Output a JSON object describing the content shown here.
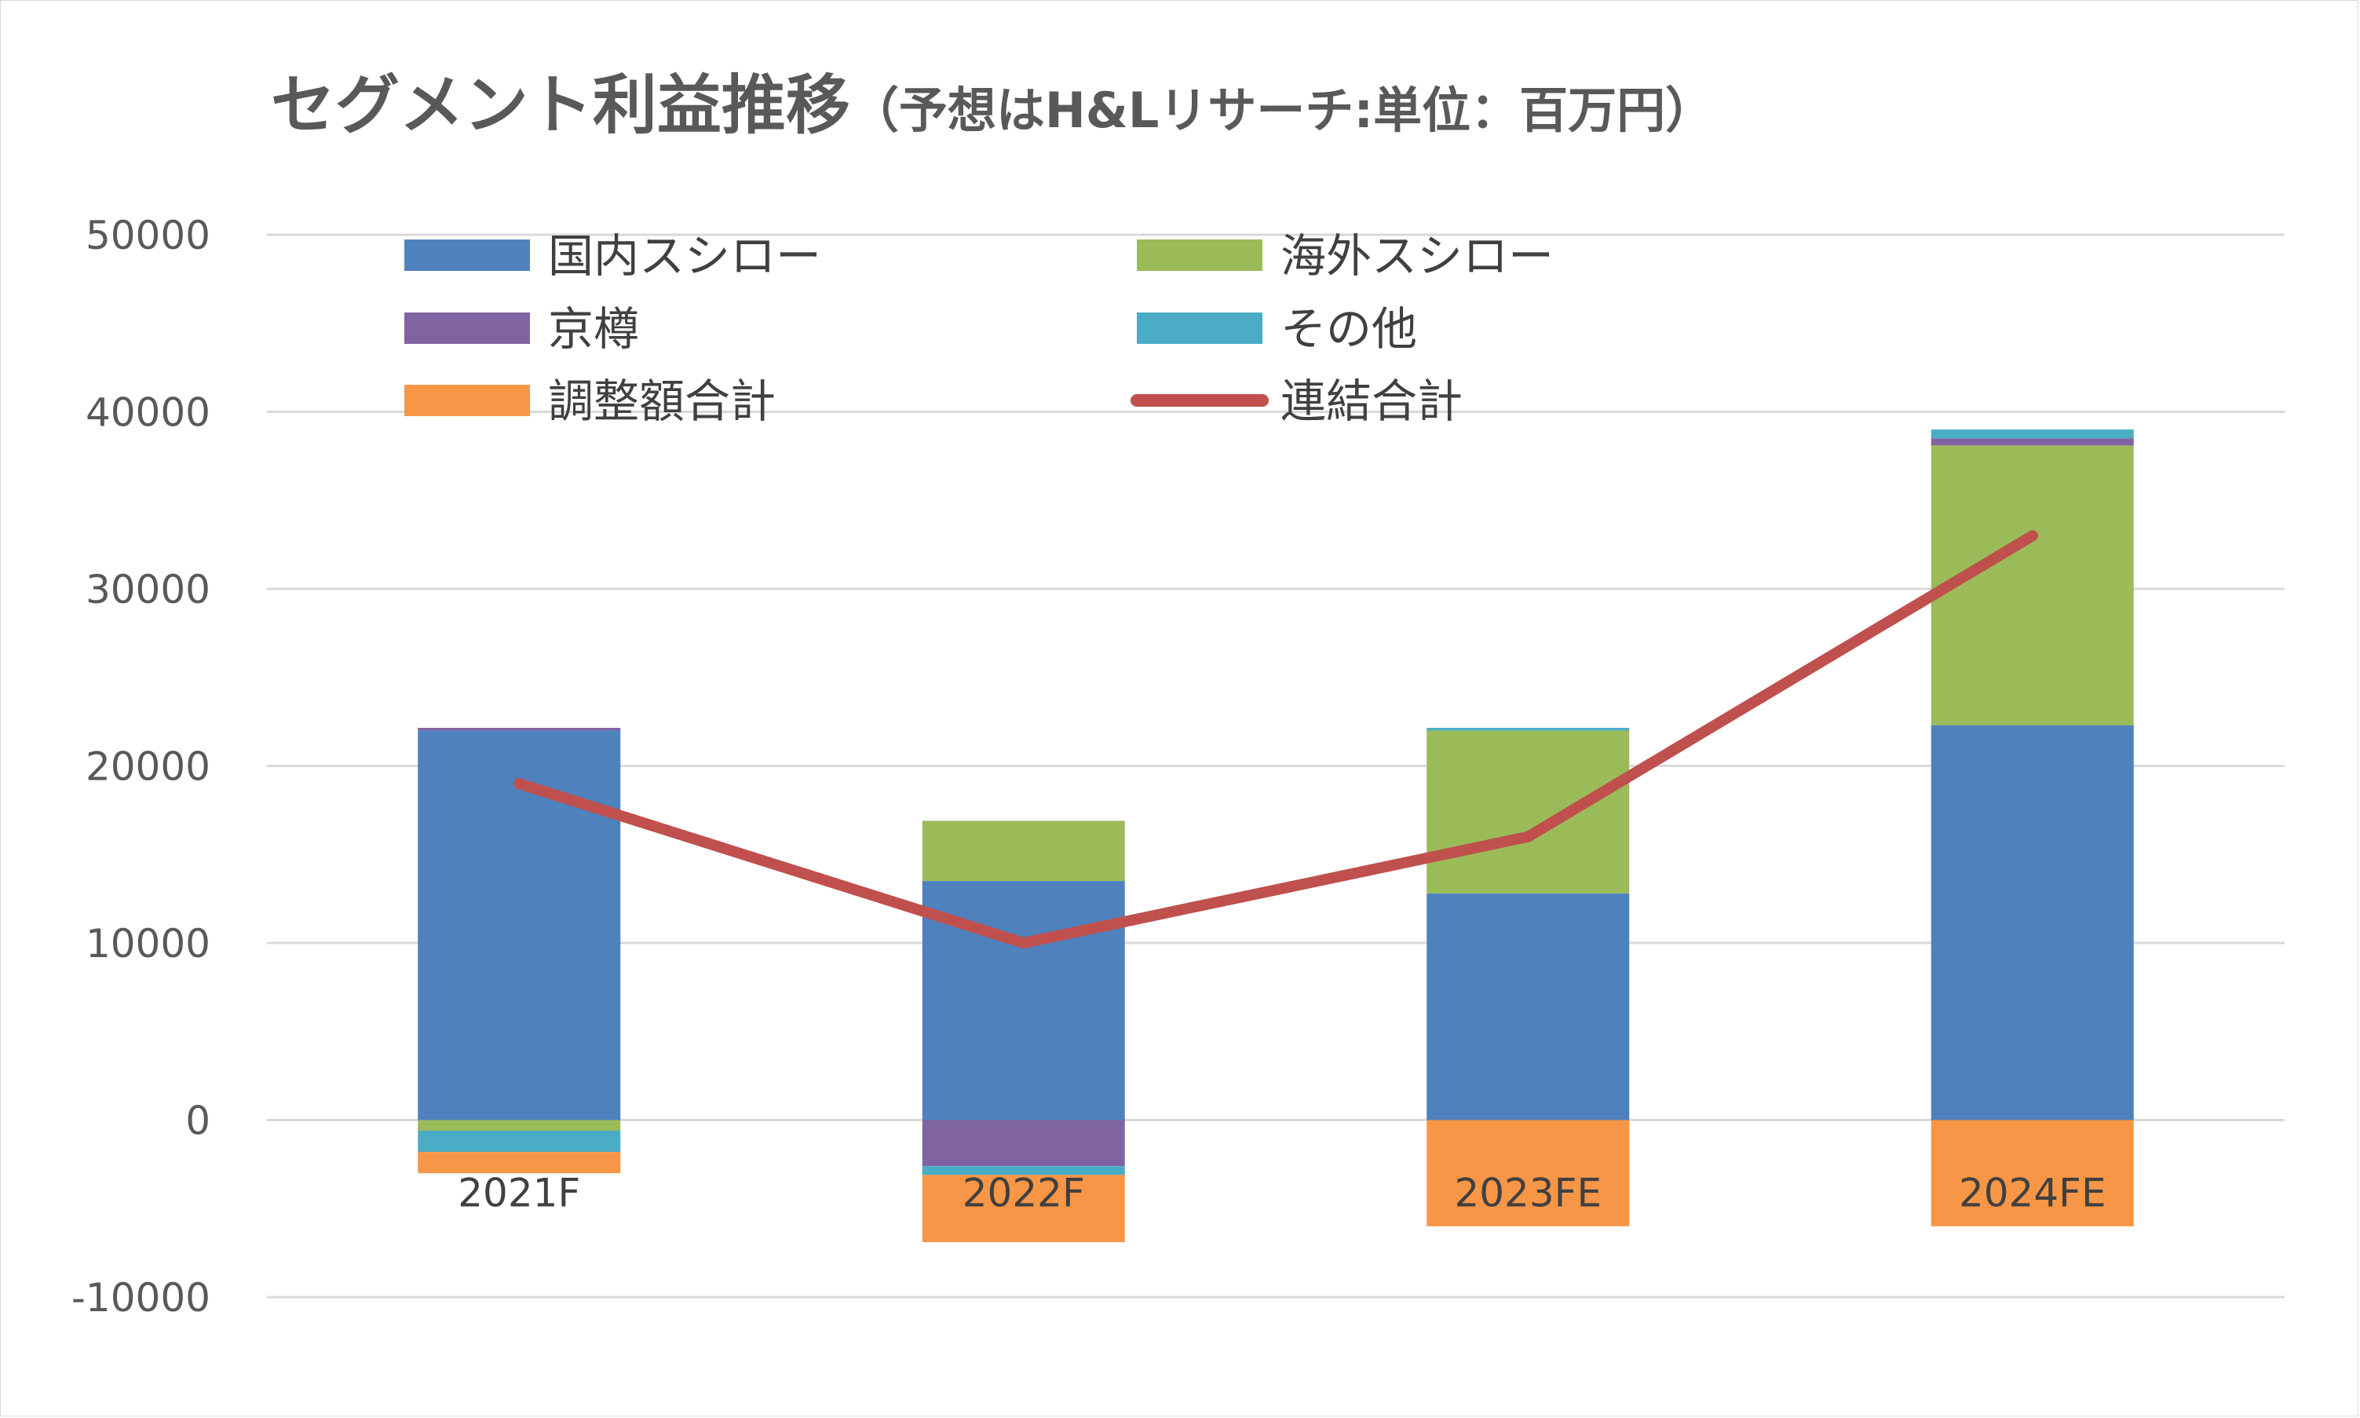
{
  "chart_data": {
    "type": "bar",
    "stacked": true,
    "title": "セグメント利益推移",
    "subtitle": "（予想はH&Lリサーチ:単位：百万円）",
    "categories": [
      "2021F",
      "2022F",
      "2023FE",
      "2024FE"
    ],
    "ylim": [
      -10000,
      50000
    ],
    "yticks": [
      50000,
      40000,
      30000,
      20000,
      10000,
      0,
      -10000
    ],
    "grid": true,
    "legend_position": "top",
    "series": [
      {
        "name": "国内スシロー",
        "type": "bar",
        "color": "#4F81BD",
        "values": [
          22000,
          13500,
          12800,
          22300
        ]
      },
      {
        "name": "海外スシロー",
        "type": "bar",
        "color": "#9BBB59",
        "values": [
          -600,
          3400,
          9200,
          15800
        ]
      },
      {
        "name": "京樽",
        "type": "bar",
        "color": "#8064A2",
        "values": [
          150,
          -2600,
          0,
          400
        ]
      },
      {
        "name": "その他",
        "type": "bar",
        "color": "#4BACC6",
        "values": [
          -1200,
          -500,
          150,
          500
        ]
      },
      {
        "name": "調整額合計",
        "type": "bar",
        "color": "#F79646",
        "values": [
          -1200,
          -3800,
          -6000,
          -6000
        ]
      },
      {
        "name": "連結合計",
        "type": "line",
        "color": "#C0504D",
        "values": [
          19000,
          10000,
          16000,
          33000
        ]
      }
    ]
  }
}
